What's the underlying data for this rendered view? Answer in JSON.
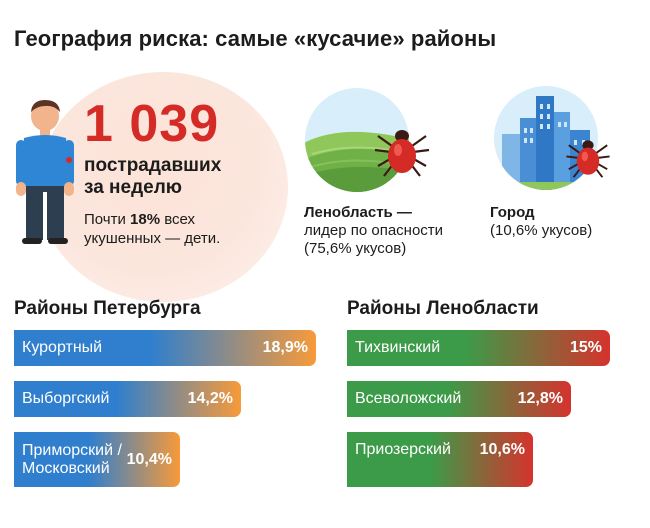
{
  "title": "География риска: самые «кусачие» районы",
  "headline": {
    "number": "1 039",
    "caption_line1": "пострадавших",
    "caption_line2": "за неделю",
    "note_prefix": "Почти ",
    "note_bold": "18%",
    "note_line1_suffix": " всех",
    "note_line2": "укушенных — дети."
  },
  "lenoblast": {
    "bold": "Ленобласть —",
    "line2": "лидер по опасности",
    "line3": "(75,6% укусов)"
  },
  "city": {
    "bold": "Город",
    "line2": "(10,6% укусов)"
  },
  "colors": {
    "accent_red": "#d52b26",
    "spb_start": "#2f7fce",
    "spb_end": "#f79a3a",
    "lo_start": "#3c9b48",
    "lo_end": "#d5332d"
  },
  "chart_data": [
    {
      "type": "bar",
      "title": "Районы Петербурга",
      "categories": [
        "Курортный",
        "Выборгский",
        "Приморский / Московский"
      ],
      "category_lines": [
        [
          "Курортный"
        ],
        [
          "Выборгский"
        ],
        [
          "Приморский /",
          "Московский"
        ]
      ],
      "values": [
        18.9,
        14.2,
        10.4
      ],
      "value_labels": [
        "18,9%",
        "14,2%",
        "10,4%"
      ],
      "unit": "%"
    },
    {
      "type": "bar",
      "title": "Районы Ленобласти",
      "categories": [
        "Тихвинский",
        "Всеволожский",
        "Приозерский"
      ],
      "category_lines": [
        [
          "Тихвинский"
        ],
        [
          "Всеволожский"
        ],
        [
          "Приозерский"
        ]
      ],
      "values": [
        15,
        12.8,
        10.6
      ],
      "value_labels": [
        "15%",
        "12,8%",
        "10,6%"
      ],
      "unit": "%"
    }
  ]
}
